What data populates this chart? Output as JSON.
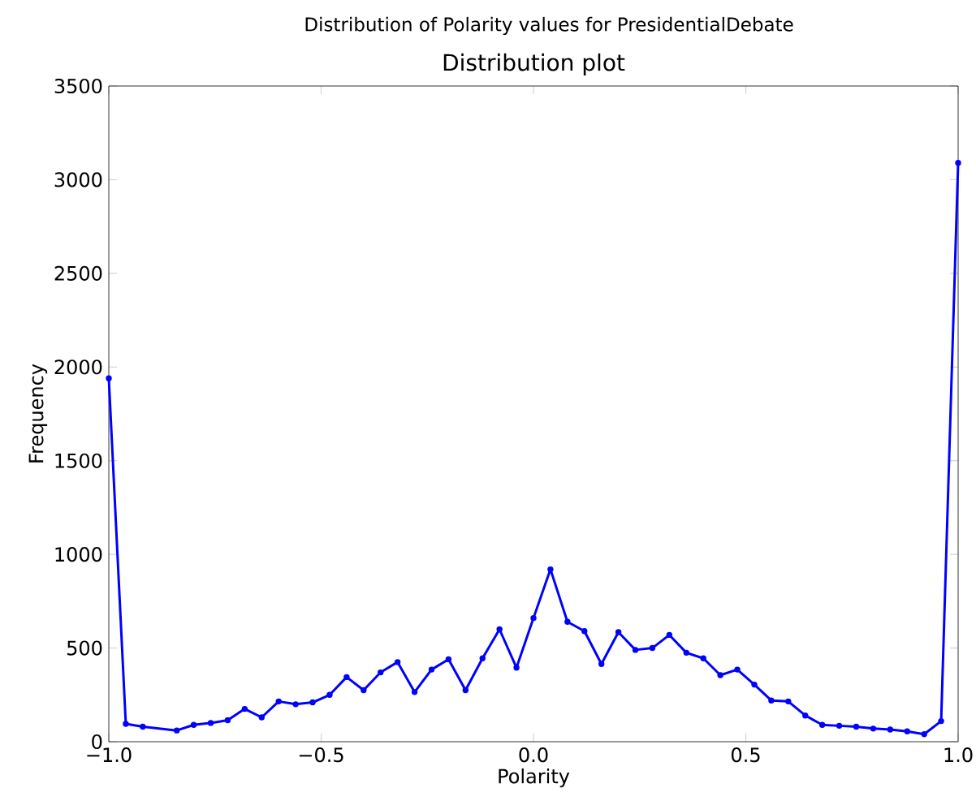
{
  "chart_data": {
    "type": "line",
    "title": "Distribution of Polarity values for PresidentialDebate",
    "subtitle": "Distribution plot",
    "xlabel": "Polarity",
    "ylabel": "Frequency",
    "x": [
      -1.0,
      -0.96,
      -0.92,
      -0.84,
      -0.8,
      -0.76,
      -0.72,
      -0.68,
      -0.64,
      -0.6,
      -0.56,
      -0.52,
      -0.48,
      -0.44,
      -0.4,
      -0.36,
      -0.32,
      -0.28,
      -0.24,
      -0.2,
      -0.16,
      -0.12,
      -0.08,
      -0.04,
      0.0,
      0.04,
      0.08,
      0.12,
      0.16,
      0.2,
      0.24,
      0.28,
      0.32,
      0.36,
      0.4,
      0.44,
      0.48,
      0.52,
      0.56,
      0.6,
      0.64,
      0.68,
      0.72,
      0.76,
      0.8,
      0.84,
      0.88,
      0.92,
      0.96,
      1.0
    ],
    "series": [
      {
        "color": "#0000ff",
        "values": [
          1940,
          95,
          80,
          60,
          90,
          100,
          115,
          175,
          130,
          215,
          200,
          210,
          250,
          345,
          275,
          370,
          425,
          265,
          385,
          440,
          275,
          445,
          600,
          395,
          660,
          920,
          640,
          590,
          415,
          585,
          490,
          500,
          570,
          475,
          445,
          355,
          385,
          305,
          220,
          215,
          140,
          90,
          85,
          80,
          70,
          65,
          55,
          40,
          110,
          3090
        ]
      }
    ],
    "xlim": [
      -1.0,
      1.0
    ],
    "ylim": [
      0,
      3500
    ],
    "xticks": [
      {
        "value": -1.0,
        "label": "−1.0"
      },
      {
        "value": -0.5,
        "label": "−0.5"
      },
      {
        "value": 0.0,
        "label": "0.0"
      },
      {
        "value": 0.5,
        "label": "0.5"
      },
      {
        "value": 1.0,
        "label": "1.0"
      }
    ],
    "yticks": [
      0,
      500,
      1000,
      1500,
      2000,
      2500,
      3000,
      3500
    ],
    "marker": "circle",
    "line_style": "solid"
  }
}
